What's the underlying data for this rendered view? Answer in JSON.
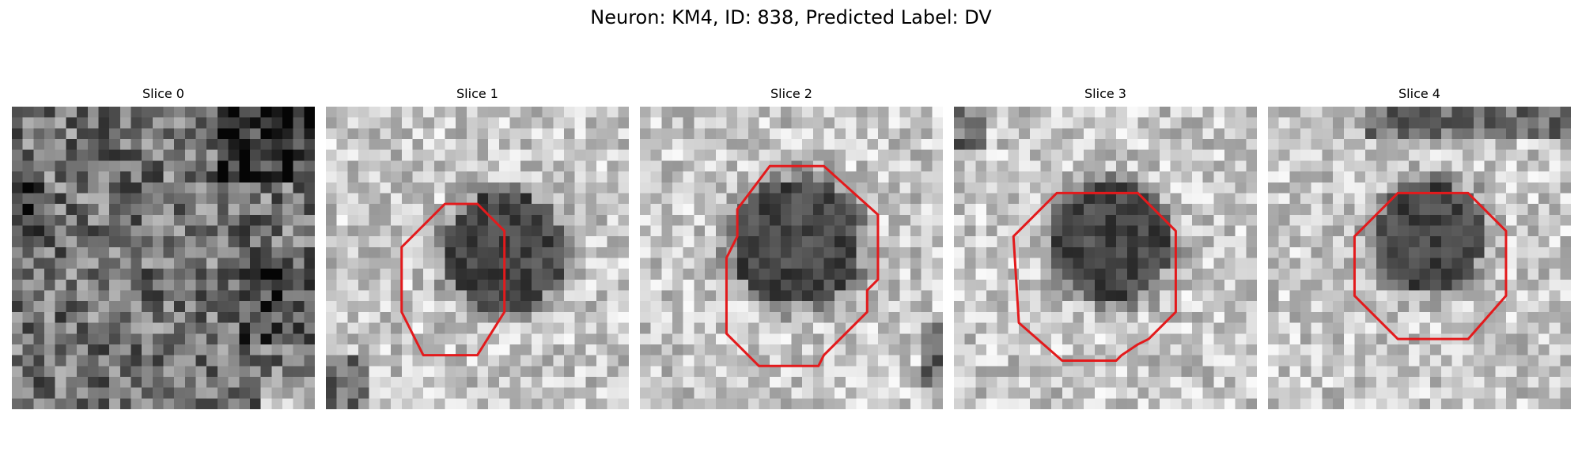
{
  "title": "Neuron: KM4, ID: 838, Predicted Label: DV",
  "panels": [
    {
      "label": "Slice 0",
      "seed": 11,
      "contrast": "uniform"
    },
    {
      "label": "Slice 1",
      "seed": 23,
      "contrast": "dark-center",
      "contour_color": "#e31a1c"
    },
    {
      "label": "Slice 2",
      "seed": 37,
      "contrast": "dark-center",
      "contour_color": "#e31a1c"
    },
    {
      "label": "Slice 3",
      "seed": 41,
      "contrast": "dark-center",
      "contour_color": "#e31a1c"
    },
    {
      "label": "Slice 4",
      "seed": 53,
      "contrast": "dark-center",
      "contour_color": "#e31a1c"
    }
  ],
  "colors": {
    "contour": "#e31a1c",
    "background": "#ffffff"
  }
}
